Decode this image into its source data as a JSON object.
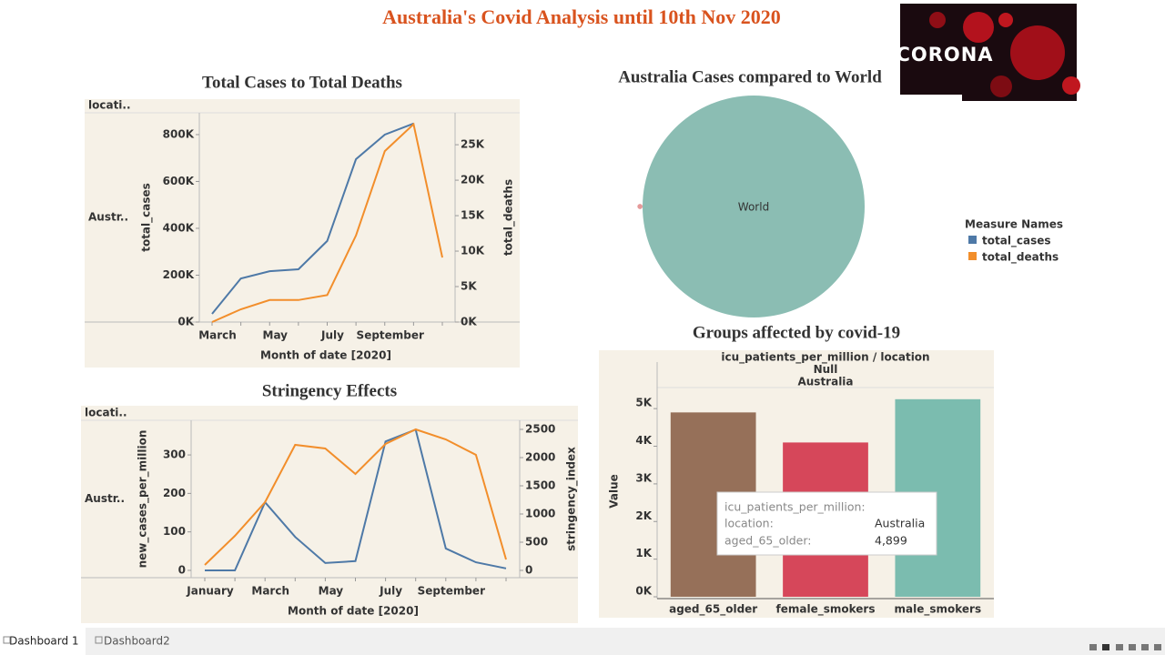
{
  "title": "Australia's Covid Analysis until 10th Nov 2020",
  "banner": "CORONA",
  "tabs": [
    "Dashboard 1",
    "Dashboard2"
  ],
  "tooltip": {
    "measure": "icu_patients_per_million:",
    "location_label": "location:",
    "location": "Australia",
    "field": "aged_65_older:",
    "value": "4,899"
  },
  "chart_data": [
    {
      "type": "line",
      "title": "Total Cases to Total Deaths",
      "column_header": "locati..",
      "row_header": "Austr..",
      "xlabel": "Month of date [2020]",
      "categories": [
        "March",
        null,
        "May",
        null,
        "July",
        null,
        "September",
        null,
        null
      ],
      "series": [
        {
          "name": "total_cases",
          "color": "#4e79a7",
          "values": [
            35000,
            186000,
            217000,
            225000,
            346000,
            695000,
            800000,
            847000,
            null
          ]
        },
        {
          "name": "total_deaths",
          "color": "#f28e2b",
          "axis": "y2",
          "values": [
            0,
            1800,
            3100,
            3100,
            3800,
            12200,
            24100,
            27900,
            9100
          ]
        }
      ],
      "ylim": [
        0,
        893000
      ],
      "yticks": [
        {
          "value": 0,
          "label": "0K"
        },
        {
          "value": 200000,
          "label": "200K"
        },
        {
          "value": 400000,
          "label": "400K"
        },
        {
          "value": 600000,
          "label": "600K"
        },
        {
          "value": 800000,
          "label": "800K"
        }
      ],
      "y2lim": [
        0,
        29500
      ],
      "y2ticks": [
        {
          "value": 0,
          "label": "0K"
        },
        {
          "value": 5000,
          "label": "5K"
        },
        {
          "value": 10000,
          "label": "10K"
        },
        {
          "value": 15000,
          "label": "15K"
        },
        {
          "value": 20000,
          "label": "20K"
        },
        {
          "value": 25000,
          "label": "25K"
        }
      ],
      "legend_title": "Measure Names",
      "legend": "right"
    },
    {
      "type": "line",
      "title": "Stringency Effects",
      "column_header": "locati..",
      "row_header": "Austr..",
      "xlabel": "Month of date [2020]",
      "categories": [
        "January",
        null,
        "March",
        null,
        "May",
        null,
        "July",
        null,
        "September",
        null,
        null
      ],
      "series": [
        {
          "name": "new_cases_per_million",
          "color": "#4e79a7",
          "values": [
            0,
            0,
            177,
            87,
            19,
            24,
            335,
            366,
            57,
            21,
            5
          ]
        },
        {
          "name": "stringency_index",
          "color": "#f28e2b",
          "axis": "y2",
          "values": [
            97,
            613,
            1210,
            2226,
            2161,
            1710,
            2242,
            2500,
            2323,
            2048,
            194
          ]
        }
      ],
      "ylim": [
        -19,
        390
      ],
      "yticks": [
        0,
        100,
        200,
        300
      ],
      "y2lim": [
        -129,
        2661
      ],
      "y2ticks": [
        0,
        500,
        1000,
        1500,
        2000,
        2500
      ]
    },
    {
      "type": "bubble",
      "title": "Australia Cases compared to World",
      "categories": [
        "World",
        null
      ],
      "values": [
        51000000,
        27700
      ],
      "colors": [
        "#8bbdb3",
        "#e59a9a"
      ]
    },
    {
      "type": "bar",
      "title": "Groups affected by covid-19",
      "header": [
        "icu_patients_per_million / location",
        "Null",
        "Australia"
      ],
      "ylabel": "Value",
      "categories": [
        "aged_65_older",
        "female_smokers",
        "male_smokers"
      ],
      "values": [
        4899,
        4100,
        5250
      ],
      "colors": [
        "#967059",
        "#d6475a",
        "#7bbcaf"
      ],
      "ylim": [
        0,
        5560
      ],
      "yticks": [
        {
          "value": 0,
          "label": "0K"
        },
        {
          "value": 1000,
          "label": "1K"
        },
        {
          "value": 2000,
          "label": "2K"
        },
        {
          "value": 3000,
          "label": "3K"
        },
        {
          "value": 4000,
          "label": "4K"
        },
        {
          "value": 5000,
          "label": "5K"
        }
      ]
    }
  ]
}
